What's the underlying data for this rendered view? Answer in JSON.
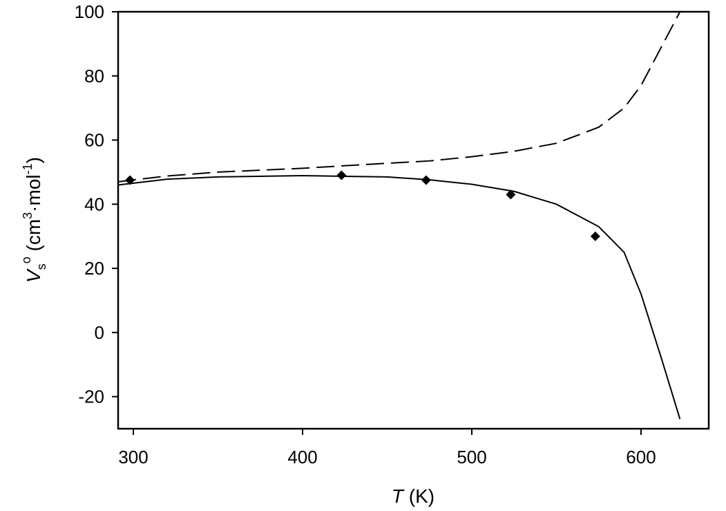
{
  "chart_data": {
    "type": "line",
    "title": "",
    "xlabel": {
      "italic": "T",
      "rest": " (K)"
    },
    "ylabel": {
      "italic": "V",
      "sub": "s",
      "sup": "o",
      "rest1": " (cm",
      "sup2": "3",
      "rest2": "·mol",
      "sup3": "-1",
      "rest3": ")"
    },
    "xlim": [
      291,
      640
    ],
    "ylim": [
      -30,
      100
    ],
    "xticks": [
      300,
      400,
      500,
      600
    ],
    "yticks": [
      -20,
      0,
      20,
      40,
      60,
      80,
      100
    ],
    "grid": false,
    "series": [
      {
        "style": "markers-diamond",
        "color": "#000000",
        "x": [
          298,
          423,
          473,
          523,
          573
        ],
        "y": [
          47.5,
          49,
          47.5,
          43,
          30
        ]
      },
      {
        "style": "solid",
        "color": "#000000",
        "x": [
          291,
          320,
          350,
          400,
          450,
          475,
          500,
          525,
          550,
          575,
          590,
          600,
          612,
          623
        ],
        "y": [
          46,
          47.8,
          48.5,
          48.9,
          48.5,
          47.6,
          46.2,
          44,
          40,
          33,
          25,
          12,
          -8,
          -27
        ]
      },
      {
        "style": "dashed",
        "color": "#000000",
        "x": [
          291,
          320,
          350,
          400,
          425,
          475,
          500,
          525,
          550,
          575,
          590,
          600,
          612,
          623
        ],
        "y": [
          47,
          48.8,
          50,
          51.2,
          52,
          53.5,
          54.8,
          56.5,
          59,
          64,
          70,
          77,
          89,
          100
        ]
      }
    ]
  }
}
